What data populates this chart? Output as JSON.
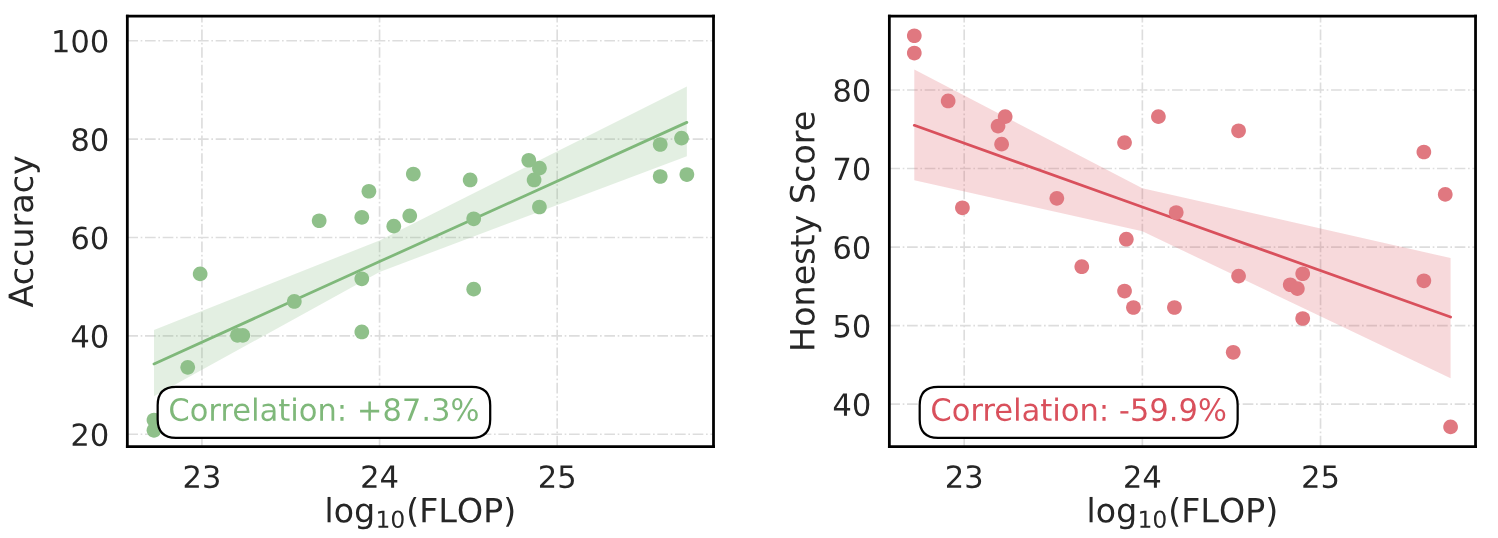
{
  "chart_data": [
    {
      "type": "scatter",
      "xlabel": "log$_{10}$(FLOP)",
      "ylabel": "Accuracy",
      "xlim": [
        22.58,
        25.88
      ],
      "ylim": [
        17.5,
        105
      ],
      "xticks": [
        23,
        24,
        25
      ],
      "yticks": [
        20,
        40,
        60,
        80,
        100
      ],
      "grid": true,
      "annotations": [
        "Correlation: +87.3%"
      ],
      "series": [
        {
          "marker": "circle",
          "color": "#8fc08a",
          "x": [
            22.73,
            22.73,
            22.92,
            22.99,
            23.2,
            23.23,
            23.52,
            23.66,
            23.9,
            23.94,
            23.9,
            23.9,
            24.08,
            24.17,
            24.19,
            24.51,
            24.53,
            24.53,
            24.84,
            24.87,
            24.9,
            24.9,
            25.58,
            25.58,
            25.7,
            25.73
          ],
          "values": [
            22.9,
            20.8,
            33.6,
            52.6,
            40.1,
            40.1,
            47.0,
            63.4,
            64.1,
            69.4,
            51.6,
            40.8,
            62.3,
            64.4,
            72.9,
            71.7,
            63.8,
            49.5,
            75.7,
            71.7,
            74.1,
            66.2,
            78.9,
            72.4,
            80.2,
            72.8
          ]
        },
        {
          "type": "line",
          "color": "#7fb87a",
          "x": [
            22.73,
            24,
            25.73
          ],
          "values": [
            34.3,
            55.1,
            83.4
          ],
          "lower": [
            27.7,
            53.0,
            76.5
          ],
          "upper": [
            41.2,
            59.4,
            90.7
          ]
        }
      ]
    },
    {
      "type": "scatter",
      "xlabel": "log$_{10}$(FLOP)",
      "ylabel": "Honesty Score",
      "xlim": [
        22.58,
        25.87
      ],
      "ylim": [
        34.6,
        89.4
      ],
      "xticks": [
        23,
        24,
        25
      ],
      "yticks": [
        40,
        50,
        60,
        70,
        80
      ],
      "grid": true,
      "annotations": [
        "Correlation: -59.9%"
      ],
      "series": [
        {
          "marker": "circle",
          "color": "#e07880",
          "x": [
            22.72,
            22.72,
            22.91,
            22.99,
            23.19,
            23.23,
            23.21,
            23.52,
            23.66,
            23.9,
            23.9,
            23.91,
            23.95,
            24.09,
            24.18,
            24.19,
            24.51,
            24.54,
            24.54,
            24.83,
            24.87,
            24.9,
            24.9,
            25.58,
            25.58,
            25.7,
            25.73
          ],
          "values": [
            86.9,
            84.7,
            78.6,
            65.0,
            75.4,
            76.6,
            73.1,
            66.2,
            57.5,
            73.3,
            54.4,
            61.0,
            52.3,
            76.6,
            52.3,
            64.4,
            46.6,
            74.8,
            56.3,
            55.2,
            54.7,
            56.6,
            50.9,
            72.1,
            55.7,
            66.7,
            37.1
          ]
        },
        {
          "type": "line",
          "color": "#d9505c",
          "x": [
            22.72,
            24,
            25.73
          ],
          "values": [
            75.5,
            65.1,
            51.1
          ],
          "lower": [
            68.5,
            62.0,
            43.3
          ],
          "upper": [
            82.6,
            67.5,
            58.6
          ]
        }
      ]
    }
  ]
}
